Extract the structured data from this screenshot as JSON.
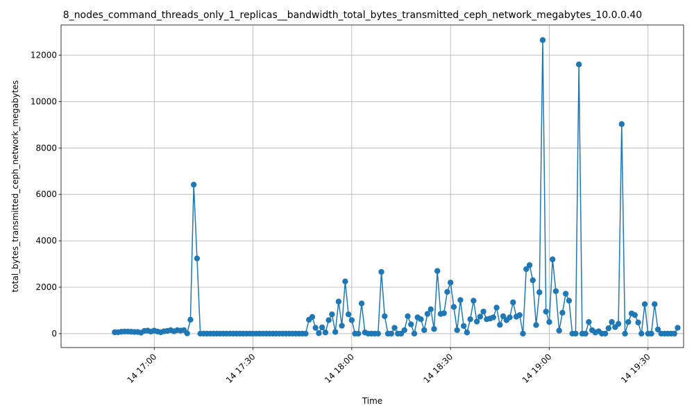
{
  "chart_data": {
    "type": "line",
    "title": "8_nodes_command_threads_only_1_replicas__bandwidth_total_bytes_transmitted_ceph_network_megabytes_10.0.0.40",
    "xlabel": "Time",
    "ylabel": "total_bytes_transmitted_ceph_network_megabytes",
    "x_ticks": [
      "14 17:00",
      "14 17:30",
      "14 18:00",
      "14 18:30",
      "14 19:00",
      "14 19:30"
    ],
    "y_ticks": [
      0,
      2000,
      4000,
      6000,
      8000,
      10000,
      12000
    ],
    "ylim": [
      -600,
      13300
    ],
    "xlim_minutes_from_16_40": [
      -8.3,
      180.8
    ],
    "grid": true,
    "color": "#1f77b4",
    "marker": "circle",
    "series": [
      {
        "name": "",
        "points": [
          [
            "16:48",
            60
          ],
          [
            "16:49",
            60
          ],
          [
            "16:50",
            80
          ],
          [
            "16:51",
            90
          ],
          [
            "16:52",
            90
          ],
          [
            "16:53",
            80
          ],
          [
            "16:54",
            70
          ],
          [
            "16:55",
            70
          ],
          [
            "16:56",
            40
          ],
          [
            "16:57",
            120
          ],
          [
            "16:58",
            130
          ],
          [
            "16:59",
            90
          ],
          [
            "17:00",
            130
          ],
          [
            "17:01",
            90
          ],
          [
            "17:02",
            60
          ],
          [
            "17:03",
            100
          ],
          [
            "17:04",
            120
          ],
          [
            "17:05",
            150
          ],
          [
            "17:06",
            100
          ],
          [
            "17:07",
            150
          ],
          [
            "17:08",
            130
          ],
          [
            "17:09",
            150
          ],
          [
            "17:10",
            10
          ],
          [
            "17:11",
            600
          ],
          [
            "17:12",
            6420
          ],
          [
            "17:13",
            3240
          ],
          [
            "17:14",
            0
          ],
          [
            "17:15",
            0
          ],
          [
            "17:16",
            0
          ],
          [
            "17:17",
            0
          ],
          [
            "17:18",
            0
          ],
          [
            "17:19",
            0
          ],
          [
            "17:20",
            0
          ],
          [
            "17:21",
            0
          ],
          [
            "17:22",
            0
          ],
          [
            "17:23",
            0
          ],
          [
            "17:24",
            0
          ],
          [
            "17:25",
            0
          ],
          [
            "17:26",
            0
          ],
          [
            "17:27",
            0
          ],
          [
            "17:28",
            0
          ],
          [
            "17:29",
            0
          ],
          [
            "17:30",
            0
          ],
          [
            "17:31",
            0
          ],
          [
            "17:32",
            0
          ],
          [
            "17:33",
            0
          ],
          [
            "17:34",
            0
          ],
          [
            "17:35",
            0
          ],
          [
            "17:36",
            0
          ],
          [
            "17:37",
            0
          ],
          [
            "17:38",
            0
          ],
          [
            "17:39",
            0
          ],
          [
            "17:40",
            0
          ],
          [
            "17:41",
            0
          ],
          [
            "17:42",
            0
          ],
          [
            "17:43",
            0
          ],
          [
            "17:44",
            0
          ],
          [
            "17:45",
            0
          ],
          [
            "17:46",
            0
          ],
          [
            "17:47",
            600
          ],
          [
            "17:48",
            720
          ],
          [
            "17:49",
            250
          ],
          [
            "17:50",
            20
          ],
          [
            "17:51",
            270
          ],
          [
            "17:52",
            50
          ],
          [
            "17:53",
            580
          ],
          [
            "17:54",
            830
          ],
          [
            "17:55",
            70
          ],
          [
            "17:56",
            1380
          ],
          [
            "17:57",
            340
          ],
          [
            "17:58",
            2250
          ],
          [
            "17:59",
            830
          ],
          [
            "18:00",
            580
          ],
          [
            "18:01",
            0
          ],
          [
            "18:02",
            0
          ],
          [
            "18:03",
            1300
          ],
          [
            "18:04",
            50
          ],
          [
            "18:05",
            0
          ],
          [
            "18:06",
            0
          ],
          [
            "18:07",
            0
          ],
          [
            "18:08",
            0
          ],
          [
            "18:09",
            2660
          ],
          [
            "18:10",
            750
          ],
          [
            "18:11",
            0
          ],
          [
            "18:12",
            0
          ],
          [
            "18:13",
            250
          ],
          [
            "18:14",
            0
          ],
          [
            "18:15",
            0
          ],
          [
            "18:16",
            150
          ],
          [
            "18:17",
            750
          ],
          [
            "18:18",
            400
          ],
          [
            "18:19",
            0
          ],
          [
            "18:20",
            700
          ],
          [
            "18:21",
            620
          ],
          [
            "18:22",
            150
          ],
          [
            "18:23",
            850
          ],
          [
            "18:24",
            1050
          ],
          [
            "18:25",
            200
          ],
          [
            "18:26",
            2700
          ],
          [
            "18:27",
            850
          ],
          [
            "18:28",
            880
          ],
          [
            "18:29",
            1800
          ],
          [
            "18:30",
            2200
          ],
          [
            "18:31",
            1150
          ],
          [
            "18:32",
            150
          ],
          [
            "18:33",
            1450
          ],
          [
            "18:34",
            330
          ],
          [
            "18:35",
            50
          ],
          [
            "18:36",
            620
          ],
          [
            "18:37",
            1420
          ],
          [
            "18:38",
            520
          ],
          [
            "18:39",
            730
          ],
          [
            "18:40",
            950
          ],
          [
            "18:41",
            620
          ],
          [
            "18:42",
            650
          ],
          [
            "18:43",
            700
          ],
          [
            "18:44",
            1120
          ],
          [
            "18:45",
            380
          ],
          [
            "18:46",
            750
          ],
          [
            "18:47",
            580
          ],
          [
            "18:48",
            700
          ],
          [
            "18:49",
            1350
          ],
          [
            "18:50",
            730
          ],
          [
            "18:51",
            800
          ],
          [
            "18:52",
            0
          ],
          [
            "18:53",
            2780
          ],
          [
            "18:54",
            2950
          ],
          [
            "18:55",
            2300
          ],
          [
            "18:56",
            370
          ],
          [
            "18:57",
            1780
          ],
          [
            "18:58",
            12650
          ],
          [
            "18:59",
            950
          ],
          [
            "19:00",
            500
          ],
          [
            "19:01",
            3200
          ],
          [
            "19:02",
            1830
          ],
          [
            "19:03",
            130
          ],
          [
            "19:04",
            900
          ],
          [
            "19:05",
            1720
          ],
          [
            "19:06",
            1420
          ],
          [
            "19:07",
            0
          ],
          [
            "19:08",
            0
          ],
          [
            "19:09",
            11600
          ],
          [
            "19:10",
            0
          ],
          [
            "19:11",
            0
          ],
          [
            "19:12",
            500
          ],
          [
            "19:13",
            150
          ],
          [
            "19:14",
            50
          ],
          [
            "19:15",
            100
          ],
          [
            "19:16",
            0
          ],
          [
            "19:17",
            0
          ],
          [
            "19:18",
            230
          ],
          [
            "19:19",
            500
          ],
          [
            "19:20",
            280
          ],
          [
            "19:21",
            420
          ],
          [
            "19:22",
            9030
          ],
          [
            "19:23",
            0
          ],
          [
            "19:24",
            500
          ],
          [
            "19:25",
            870
          ],
          [
            "19:26",
            800
          ],
          [
            "19:27",
            480
          ],
          [
            "19:28",
            0
          ],
          [
            "19:29",
            1270
          ],
          [
            "19:30",
            0
          ],
          [
            "19:31",
            0
          ],
          [
            "19:32",
            1270
          ],
          [
            "19:33",
            180
          ],
          [
            "19:34",
            0
          ],
          [
            "19:35",
            0
          ],
          [
            "19:36",
            0
          ],
          [
            "19:37",
            0
          ],
          [
            "19:38",
            0
          ],
          [
            "19:39",
            250
          ]
        ]
      }
    ]
  }
}
